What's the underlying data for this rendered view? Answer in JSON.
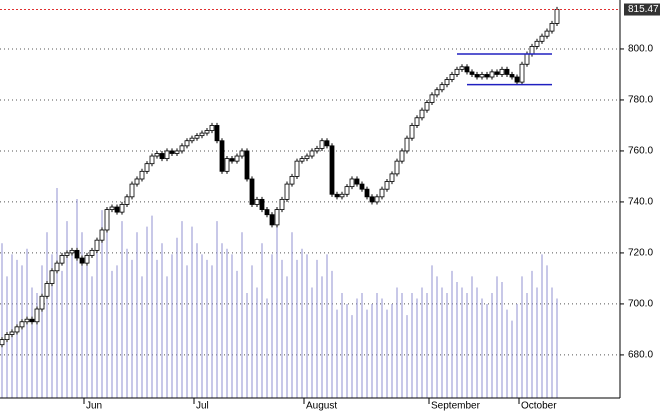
{
  "chart_data": {
    "type": "candlestick",
    "open": [
      684,
      686,
      688,
      689,
      691,
      693,
      694,
      693,
      698,
      703,
      708,
      713,
      716,
      719,
      720,
      721,
      718,
      716,
      719,
      721,
      725,
      729,
      737,
      738,
      736,
      739,
      742,
      747,
      749,
      752,
      755,
      758,
      759,
      757,
      760,
      759,
      760,
      762,
      764,
      765,
      766,
      767,
      768,
      770,
      764,
      752,
      757,
      756,
      758,
      760,
      749,
      739,
      741,
      737,
      735,
      731,
      737,
      741,
      747,
      750,
      756,
      757,
      758,
      760,
      761,
      764,
      762,
      743,
      742,
      743,
      746,
      749,
      747,
      745,
      742,
      740,
      742,
      745,
      748,
      751,
      756,
      760,
      765,
      770,
      773,
      776,
      779,
      782,
      784,
      786,
      788,
      790,
      792,
      793,
      791,
      790,
      789,
      790,
      789,
      791,
      790,
      792,
      790,
      789,
      787,
      794,
      798,
      801,
      803,
      805,
      807,
      810
    ],
    "high": [
      687,
      689,
      690,
      692,
      694,
      695,
      695,
      699,
      704,
      709,
      714,
      717,
      720,
      721,
      722,
      722,
      719,
      720,
      722,
      726,
      730,
      738,
      739,
      739,
      740,
      743,
      748,
      750,
      753,
      756,
      759,
      760,
      760,
      761,
      761,
      761,
      763,
      765,
      766,
      767,
      768,
      769,
      771,
      771,
      765,
      758,
      758,
      759,
      761,
      761,
      750,
      742,
      742,
      738,
      736,
      738,
      742,
      748,
      751,
      757,
      758,
      759,
      761,
      762,
      765,
      765,
      763,
      744,
      744,
      747,
      750,
      750,
      748,
      746,
      743,
      743,
      746,
      749,
      752,
      757,
      761,
      766,
      771,
      774,
      777,
      780,
      783,
      785,
      787,
      789,
      791,
      793,
      794,
      794,
      792,
      791,
      791,
      791,
      792,
      792,
      793,
      793,
      791,
      790,
      795,
      799,
      802,
      804,
      806,
      808,
      811,
      816.5
    ],
    "low": [
      683,
      685,
      687,
      688,
      690,
      692,
      692,
      692,
      697,
      702,
      707,
      712,
      715,
      718,
      719,
      717,
      715,
      715,
      718,
      720,
      724,
      728,
      736,
      735,
      735,
      738,
      741,
      746,
      748,
      751,
      754,
      757,
      756,
      756,
      758,
      758,
      759,
      761,
      763,
      764,
      765,
      766,
      767,
      763,
      751,
      751,
      755,
      755,
      757,
      748,
      738,
      738,
      736,
      734,
      730,
      730,
      736,
      740,
      746,
      749,
      755,
      756,
      757,
      759,
      760,
      761,
      742,
      741,
      741,
      742,
      745,
      746,
      744,
      741,
      739,
      739,
      741,
      744,
      747,
      750,
      755,
      759,
      764,
      769,
      772,
      775,
      778,
      781,
      783,
      785,
      787,
      789,
      791,
      790,
      789,
      788,
      788,
      788,
      788,
      789,
      789,
      789,
      788,
      786,
      786,
      793,
      797,
      800,
      802,
      804,
      806,
      809
    ],
    "close": [
      686,
      688,
      689,
      691,
      693,
      694,
      693,
      698,
      703,
      708,
      713,
      716,
      719,
      720,
      721,
      718,
      716,
      719,
      721,
      725,
      729,
      737,
      738,
      736,
      739,
      742,
      747,
      749,
      752,
      755,
      758,
      759,
      757,
      760,
      759,
      760,
      762,
      764,
      765,
      766,
      767,
      768,
      770,
      764,
      752,
      757,
      756,
      758,
      760,
      749,
      739,
      741,
      737,
      735,
      731,
      737,
      741,
      747,
      750,
      756,
      757,
      758,
      760,
      761,
      764,
      762,
      743,
      742,
      743,
      746,
      749,
      747,
      745,
      742,
      740,
      742,
      745,
      748,
      751,
      756,
      760,
      765,
      770,
      773,
      776,
      779,
      782,
      784,
      786,
      788,
      790,
      792,
      793,
      791,
      790,
      789,
      790,
      789,
      791,
      790,
      792,
      790,
      789,
      787,
      794,
      798,
      801,
      803,
      805,
      807,
      810,
      815.47
    ],
    "volume": [
      140,
      110,
      130,
      125,
      120,
      135,
      100,
      95,
      120,
      150,
      130,
      190,
      115,
      160,
      130,
      180,
      150,
      120,
      110,
      140,
      170,
      155,
      115,
      120,
      160,
      135,
      125,
      150,
      110,
      155,
      165,
      125,
      140,
      110,
      130,
      145,
      160,
      120,
      155,
      140,
      130,
      125,
      120,
      160,
      140,
      135,
      130,
      115,
      150,
      95,
      120,
      100,
      140,
      90,
      130,
      160,
      125,
      110,
      150,
      125,
      135,
      130,
      100,
      125,
      110,
      130,
      115,
      80,
      95,
      85,
      75,
      90,
      95,
      80,
      85,
      95,
      90,
      80,
      85,
      100,
      95,
      75,
      95,
      90,
      100,
      95,
      120,
      110,
      100,
      95,
      115,
      105,
      100,
      95,
      110,
      100,
      90,
      85,
      95,
      110,
      105,
      80,
      70,
      85,
      110,
      95,
      115,
      100,
      130,
      120,
      100,
      90
    ],
    "up_color": "#ffffff",
    "down_color": "#000000",
    "volume_color": "#9090d0",
    "last_line_color": "#e03030",
    "xlim": [
      -0.4,
      123.6
    ],
    "xticks": [
      {
        "value": 18,
        "label": "Jun"
      },
      {
        "value": 40,
        "label": "Jul"
      },
      {
        "value": 62,
        "label": "August"
      },
      {
        "value": 87,
        "label": "September"
      },
      {
        "value": 105,
        "label": "October"
      }
    ],
    "ylim": [
      663.1,
      819.2
    ],
    "yticks": [
      {
        "value": 680,
        "label": "680.0"
      },
      {
        "value": 700,
        "label": "700.0"
      },
      {
        "value": 720,
        "label": "720.0"
      },
      {
        "value": 740,
        "label": "740.0"
      },
      {
        "value": 760,
        "label": "760.0"
      },
      {
        "value": 780,
        "label": "780.0"
      },
      {
        "value": 800,
        "label": "800.0"
      }
    ],
    "grid": true,
    "hlines": [
      {
        "value": 798,
        "x": [
          91,
          110
        ],
        "color": "#2020c0"
      },
      {
        "value": 786,
        "x": [
          93,
          110
        ],
        "color": "#2020c0"
      }
    ]
  }
}
